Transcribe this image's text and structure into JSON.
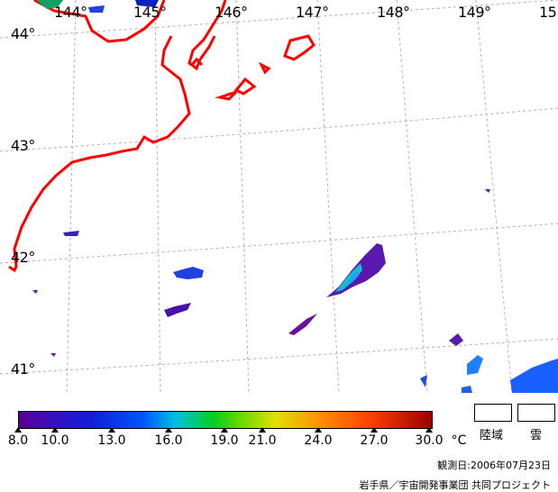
{
  "map": {
    "lon_labels": [
      "144°",
      "145°",
      "146°",
      "147°",
      "148°",
      "149°",
      "15"
    ],
    "lat_labels": [
      "44°",
      "43°",
      "42°",
      "41°"
    ]
  },
  "legend": {
    "tick_labels": [
      "8.0",
      "10.0",
      "13.0",
      "16.0",
      "19.0",
      "21.0",
      "24.0",
      "27.0",
      "30.0"
    ],
    "unit": "°C",
    "land_label": "陸域",
    "cloud_label": "雲"
  },
  "footer": {
    "date": "観測日:2006年07月23日",
    "credit": "岩手県／宇宙開発事業団 共同プロジェクト"
  },
  "colors": {
    "coastline": "#ff0000",
    "grid": "#aaaaaa"
  }
}
